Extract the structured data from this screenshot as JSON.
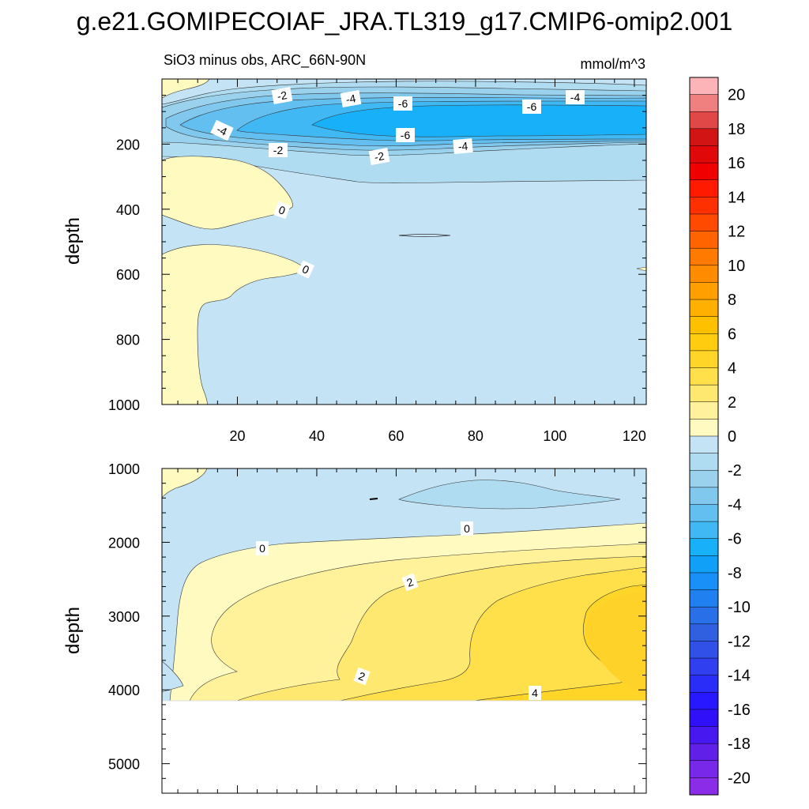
{
  "chart_data": {
    "type": "contour",
    "title": "g.e21.GOMIPECOIAF_JRA.TL319_g17.CMIP6-omip2.001",
    "subtitle": "SiO3 minus obs, ARC_66N-90N",
    "units": "mmol/m^3",
    "ylabel": "depth",
    "xlabel": "",
    "upper_panel": {
      "xlim": [
        1,
        123
      ],
      "ylim": [
        1000,
        0
      ],
      "x_ticks": [
        "20",
        "40",
        "60",
        "80",
        "100",
        "120"
      ],
      "y_ticks": [
        "200",
        "400",
        "600",
        "800",
        "1000"
      ],
      "contour_labels": [
        "-2",
        "-4",
        "-6",
        "-6",
        "-4",
        "-4",
        "-6",
        "-4",
        "-2",
        "-2",
        "0",
        "0"
      ]
    },
    "lower_panel": {
      "xlim": [
        1,
        123
      ],
      "ylim": [
        5400,
        1000
      ],
      "y_ticks": [
        "1000",
        "2000",
        "3000",
        "4000",
        "5000"
      ],
      "data_floor_depth": 4100,
      "contour_labels": [
        "0",
        "0",
        "2",
        "2",
        "4"
      ]
    },
    "colorbar": {
      "labels": [
        "20",
        "18",
        "16",
        "14",
        "12",
        "10",
        "8",
        "6",
        "4",
        "2",
        "0",
        "-2",
        "-4",
        "-6",
        "-8",
        "-10",
        "-12",
        "-14",
        "-16",
        "-18",
        "-20"
      ],
      "colors": [
        "#fcb4b8",
        "#f08080",
        "#e04848",
        "#d21414",
        "#e00808",
        "#f00000",
        "#ff1a00",
        "#ff3000",
        "#ff4a00",
        "#ff6400",
        "#ff7a00",
        "#ff8c00",
        "#ff9f00",
        "#ffb000",
        "#ffc000",
        "#ffcc10",
        "#ffd628",
        "#ffe04a",
        "#ffe870",
        "#fff29a",
        "#fffac0",
        "#c4e4f6",
        "#b0dcf2",
        "#9ad2ee",
        "#80c8ee",
        "#62bff0",
        "#40b8f4",
        "#18b0f8",
        "#10a0f8",
        "#1890f8",
        "#2080f0",
        "#2870e8",
        "#3060e0",
        "#3050e8",
        "#3040f0",
        "#2a2cf8",
        "#2818ff",
        "#3010f8",
        "#4818f0",
        "#6020e8",
        "#7828e8",
        "#8a2ce8"
      ]
    }
  }
}
